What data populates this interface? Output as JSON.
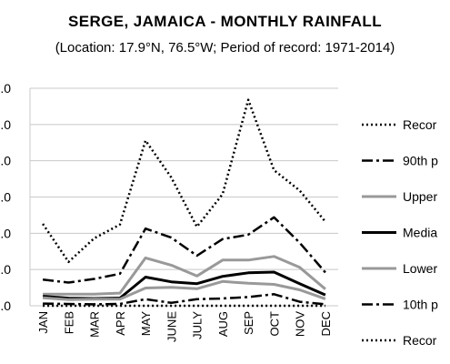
{
  "chart_data": {
    "type": "line",
    "title": "SERGE, JAMAICA - MONTHLY RAINFALL",
    "subtitle": "(Location: 17.9°N, 76.5°W; Period of record: 1971-2014)",
    "categories": [
      "JAN",
      "FEB",
      "MAR",
      "APR",
      "MAY",
      "JUNE",
      "JULY",
      "AUG",
      "SEP",
      "OCT",
      "NOV",
      "DEC"
    ],
    "ylim": [
      0,
      600
    ],
    "yticks": [
      0,
      100,
      200,
      300,
      400,
      500,
      600
    ],
    "ytick_labels": [
      ".0",
      ".0",
      ".0",
      ".0",
      ".0",
      ".0",
      ".0"
    ],
    "grid": true,
    "legend_position": "right",
    "series": [
      {
        "name": "Recor",
        "style": "dotted",
        "color": "#000000",
        "values": [
          226,
          121,
          186,
          224,
          456,
          354,
          218,
          308,
          568,
          374,
          318,
          232
        ]
      },
      {
        "name": "90th p",
        "style": "dashdot",
        "color": "#000000",
        "values": [
          72,
          64,
          74,
          88,
          213,
          188,
          138,
          184,
          196,
          244,
          174,
          92
        ]
      },
      {
        "name": "Upper",
        "style": "solid",
        "color": "#999999",
        "values": [
          32,
          32,
          32,
          35,
          132,
          112,
          82,
          126,
          126,
          136,
          106,
          46
        ]
      },
      {
        "name": "Media",
        "style": "solid",
        "color": "#000000",
        "values": [
          26,
          21,
          20,
          21,
          79,
          66,
          61,
          81,
          91,
          93,
          61,
          30
        ]
      },
      {
        "name": "Lower",
        "style": "solid",
        "color": "#999999",
        "values": [
          22,
          17,
          18,
          18,
          49,
          51,
          47,
          67,
          62,
          59,
          44,
          19
        ]
      },
      {
        "name": "10th p",
        "style": "dashdot",
        "color": "#000000",
        "values": [
          6,
          5,
          4,
          5,
          18,
          8,
          18,
          20,
          24,
          32,
          11,
          4
        ]
      },
      {
        "name": "Recor",
        "style": "dotted",
        "color": "#000000",
        "values": [
          0,
          0,
          0,
          0,
          0,
          0,
          0,
          0,
          0,
          0,
          0,
          0
        ]
      }
    ]
  }
}
